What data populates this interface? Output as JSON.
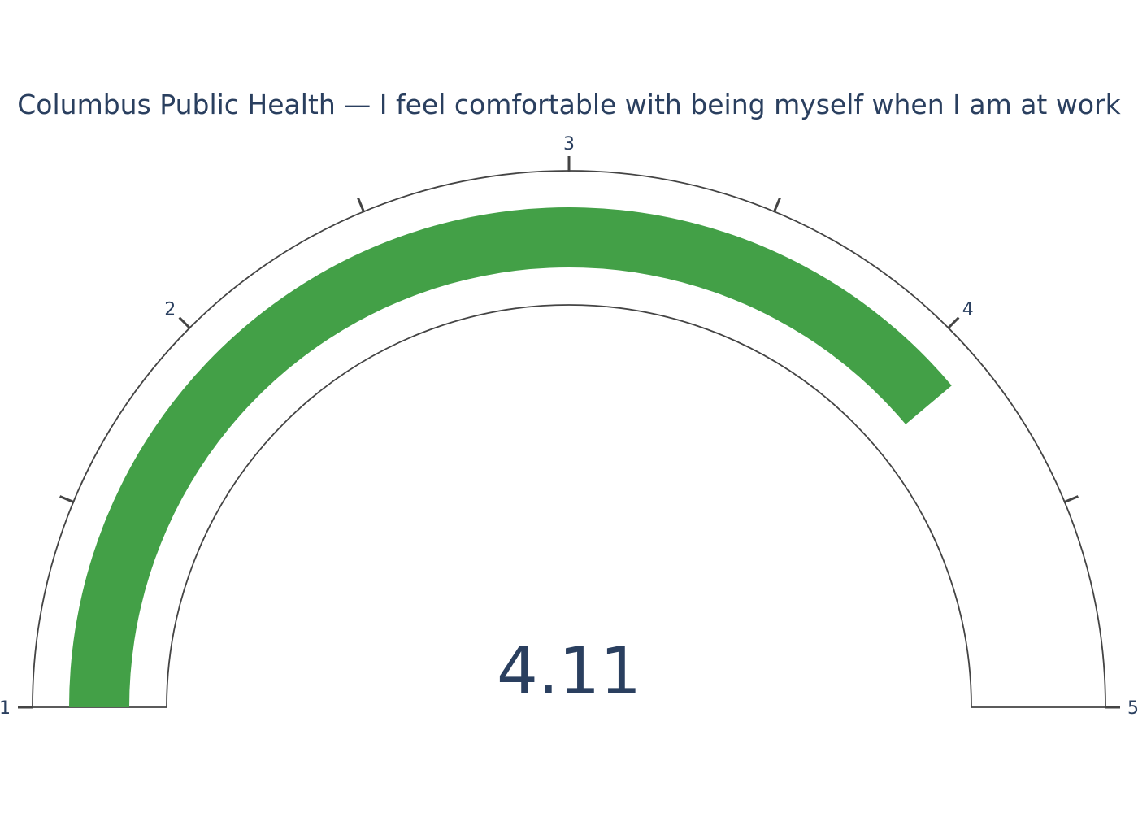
{
  "chart_data": {
    "type": "gauge",
    "title": "Columbus Public Health — I feel comfortable with being myself when I am at work",
    "value": 4.11,
    "value_label": "4.11",
    "range": [
      1,
      5
    ],
    "tick_labels": [
      "1",
      "2",
      "3",
      "4",
      "5"
    ],
    "tick_values": [
      1,
      2,
      3,
      4,
      5
    ],
    "minor_tick_values": [
      1.5,
      2.5,
      3.5,
      4.5
    ],
    "bar_color": "#43a047",
    "outline_color": "#444444",
    "text_color": "#2a3f5f",
    "background_color": "#ffffff"
  }
}
